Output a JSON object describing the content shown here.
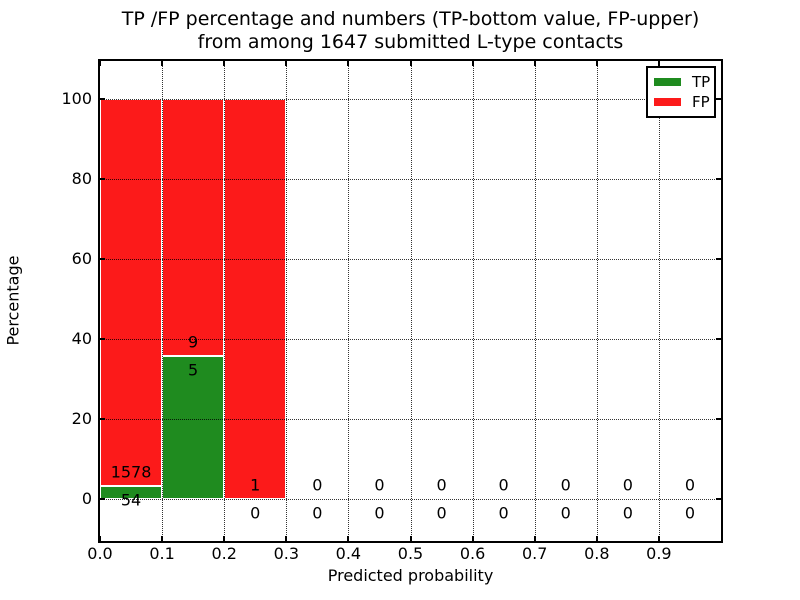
{
  "title": {
    "line1": "TP /FP percentage and numbers (TP-bottom value, FP-upper)",
    "line2": "from among 1647 submitted L-type contacts"
  },
  "axes": {
    "xlabel": "Predicted probability",
    "ylabel": "Percentage",
    "xtick_labels": [
      "0.0",
      "0.1",
      "0.2",
      "0.3",
      "0.4",
      "0.5",
      "0.6",
      "0.7",
      "0.8",
      "0.9"
    ],
    "ytick_labels": [
      "0",
      "20",
      "40",
      "60",
      "80",
      "100"
    ]
  },
  "legend": {
    "items": [
      {
        "label": "TP",
        "color": "#1f8b1f"
      },
      {
        "label": "FP",
        "color": "#fc1a1a"
      }
    ]
  },
  "colors": {
    "tp_green": "#1f8b1f",
    "fp_red": "#fc1a1a",
    "bar_edge": "#ffffff",
    "grid": "#000000"
  },
  "chart_data": {
    "type": "bar",
    "stacked": true,
    "title": "TP /FP percentage and numbers (TP-bottom value, FP-upper)\nfrom among 1647 submitted L-type contacts",
    "xlabel": "Predicted probability",
    "ylabel": "Percentage",
    "total_contacts": 1647,
    "bin_width": 0.1,
    "bin_starts": [
      0.0,
      0.1,
      0.2,
      0.3,
      0.4,
      0.5,
      0.6,
      0.7,
      0.8,
      0.9
    ],
    "xticks": [
      0.0,
      0.1,
      0.2,
      0.3,
      0.4,
      0.5,
      0.6,
      0.7,
      0.8,
      0.9
    ],
    "yticks": [
      0,
      20,
      40,
      60,
      80,
      100
    ],
    "xlim": [
      0.0,
      1.0
    ],
    "ylim": [
      -10.5,
      109.5
    ],
    "grid": true,
    "legend_position": "upper right",
    "series": [
      {
        "name": "TP",
        "color": "#1f8b1f",
        "counts": [
          54,
          5,
          0,
          0,
          0,
          0,
          0,
          0,
          0,
          0
        ],
        "pct": [
          3.31,
          35.71,
          0,
          0,
          0,
          0,
          0,
          0,
          0,
          0
        ]
      },
      {
        "name": "FP",
        "color": "#fc1a1a",
        "counts": [
          1578,
          9,
          1,
          0,
          0,
          0,
          0,
          0,
          0,
          0
        ],
        "pct": [
          96.69,
          64.29,
          100,
          0,
          0,
          0,
          0,
          0,
          0,
          0
        ]
      }
    ]
  }
}
